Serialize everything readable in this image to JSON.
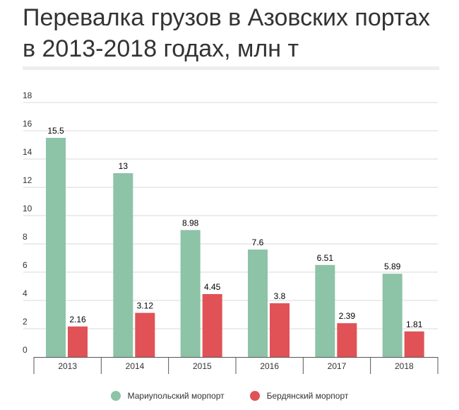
{
  "title": "Перевалка грузов в Азовских портах в 2013-2018 годах, млн т",
  "chart_data": {
    "type": "bar",
    "categories": [
      "2013",
      "2014",
      "2015",
      "2016",
      "2017",
      "2018"
    ],
    "series": [
      {
        "name": "Мариупольский морпорт",
        "values": [
          15.5,
          13,
          8.98,
          7.6,
          6.51,
          5.89
        ],
        "labels": [
          "15.5",
          "13",
          "8.98",
          "7.6",
          "6.51",
          "5.89"
        ],
        "color": "#8dc3a7"
      },
      {
        "name": "Бердянский морпорт",
        "values": [
          2.16,
          3.12,
          4.45,
          3.8,
          2.39,
          1.81
        ],
        "labels": [
          "2.16",
          "3.12",
          "4.45",
          "3.8",
          "2.39",
          "1.81"
        ],
        "color": "#e05256"
      }
    ],
    "yticks": [
      "0",
      "2",
      "4",
      "6",
      "8",
      "10",
      "12",
      "14",
      "16",
      "18"
    ],
    "ylim": [
      0,
      18
    ],
    "grid": true,
    "legend_position": "bottom"
  }
}
